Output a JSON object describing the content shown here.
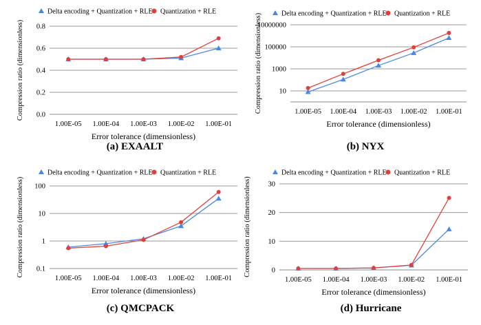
{
  "chart_data": [
    {
      "type": "line",
      "caption": "(a) EXAALT",
      "x": [
        "1.00E-05",
        "1.00E-04",
        "1.00E-03",
        "1.00E-02",
        "1.00E-01"
      ],
      "xlabel": "Error tolerance (dimensionless)",
      "ylabel": "Compression ratio (dimensionless)",
      "yscale": "linear",
      "ylim": [
        0,
        0.8
      ],
      "yticks": [
        "0.0",
        "0.2",
        "0.4",
        "0.6",
        "0.8"
      ],
      "grid": "horizontal",
      "legend_position": "top",
      "series": [
        {
          "name": "Delta encoding + Quantization + RLE",
          "color": "#4a86e8",
          "marker": "triangle",
          "values": [
            0.5,
            0.5,
            0.5,
            0.51,
            0.6
          ]
        },
        {
          "name": "Quantization + RLE",
          "color": "#e0403a",
          "marker": "circle",
          "values": [
            0.5,
            0.5,
            0.5,
            0.52,
            0.69
          ]
        }
      ]
    },
    {
      "type": "line",
      "caption": "(b) NYX",
      "x": [
        "1.00E-05",
        "1.00E-04",
        "1.00E-03",
        "1.00E-02",
        "1.00E-01"
      ],
      "xlabel": "Error tolerance (dimensionless)",
      "ylabel": "Compression ratio (dimensionless)",
      "yscale": "log",
      "ylim": [
        1,
        10000000
      ],
      "yticks": [
        "10",
        "1000",
        "100000",
        "10000000"
      ],
      "grid": "horizontal",
      "legend_position": "top",
      "series": [
        {
          "name": "Delta encoding + Quantization + RLE",
          "color": "#4a86e8",
          "marker": "triangle",
          "values": [
            8,
            110,
            2000,
            28000,
            650000
          ]
        },
        {
          "name": "Quantization + RLE",
          "color": "#e0403a",
          "marker": "circle",
          "values": [
            18,
            350,
            6000,
            90000,
            1800000
          ]
        }
      ]
    },
    {
      "type": "line",
      "caption": "(c) QMCPACK",
      "x": [
        "1.00E-05",
        "1.00E-04",
        "1.00E-03",
        "1.00E-02",
        "1.00E-01"
      ],
      "xlabel": "Error tolerance (dimensionless)",
      "ylabel": "Compression ratio (dimensionless)",
      "yscale": "log",
      "ylim": [
        0.1,
        100
      ],
      "yticks": [
        "0.1",
        "1",
        "10",
        "100"
      ],
      "grid": "horizontal",
      "legend_position": "top",
      "series": [
        {
          "name": "Delta encoding + Quantization + RLE",
          "color": "#4a86e8",
          "marker": "triangle",
          "values": [
            0.6,
            0.8,
            1.2,
            3.5,
            35
          ]
        },
        {
          "name": "Quantization + RLE",
          "color": "#e0403a",
          "marker": "circle",
          "values": [
            0.55,
            0.65,
            1.1,
            4.8,
            60
          ]
        }
      ]
    },
    {
      "type": "line",
      "caption": "(d) Hurricane",
      "x": [
        "1.00E-05",
        "1.00E-04",
        "1.00E-03",
        "1.00E-02",
        "1.00E-01"
      ],
      "xlabel": "Error tolerance (dimensionless)",
      "ylabel": "Compression ratio (dimensionless)",
      "yscale": "linear",
      "ylim": [
        0,
        30
      ],
      "yticks": [
        "0",
        "10",
        "20",
        "30"
      ],
      "grid": "horizontal",
      "legend_position": "top",
      "series": [
        {
          "name": "Delta encoding + Quantization + RLE",
          "color": "#4a86e8",
          "marker": "triangle",
          "values": [
            0.5,
            0.5,
            0.7,
            1.6,
            14.2
          ]
        },
        {
          "name": "Quantization + RLE",
          "color": "#e0403a",
          "marker": "circle",
          "values": [
            0.5,
            0.5,
            0.7,
            1.7,
            25.1
          ]
        }
      ]
    }
  ]
}
